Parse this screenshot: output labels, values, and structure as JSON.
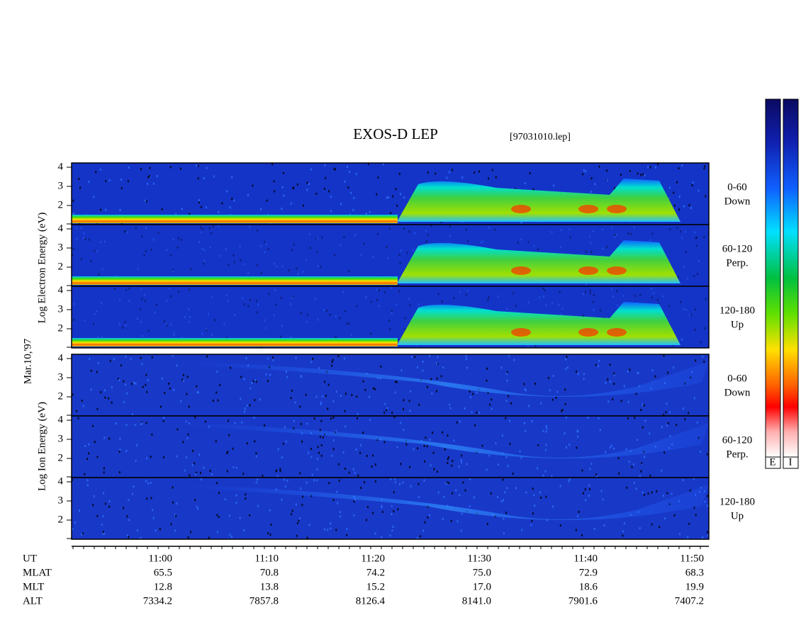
{
  "title": "EXOS-D LEP",
  "file": "[97031010.lep]",
  "date_label": "Mar.10,'97",
  "electron_label": "Log  Electron  Energy (eV)",
  "ion_label": "Log  Ion  Energy (eV)",
  "yticks": [
    "4",
    "3",
    "2"
  ],
  "electron_panels": [
    {
      "angle": "0-60",
      "direction": "Down"
    },
    {
      "angle": "60-120",
      "direction": "Perp."
    },
    {
      "angle": "120-180",
      "direction": "Up"
    }
  ],
  "ion_panels": [
    {
      "angle": "0-60",
      "direction": "Down"
    },
    {
      "angle": "60-120",
      "direction": "Perp."
    },
    {
      "angle": "120-180",
      "direction": "Up"
    }
  ],
  "colorbar": {
    "labels": [
      "E",
      "I"
    ]
  },
  "time_table": {
    "rows": [
      {
        "label": "UT",
        "values": [
          "11:00",
          "11:10",
          "11:20",
          "11:30",
          "11:40",
          "11:50"
        ]
      },
      {
        "label": "MLAT",
        "values": [
          "65.5",
          "70.8",
          "74.2",
          "75.0",
          "72.9",
          "68.3"
        ]
      },
      {
        "label": "MLT",
        "values": [
          "12.8",
          "13.8",
          "15.2",
          "17.0",
          "18.6",
          "19.9"
        ]
      },
      {
        "label": "ALT",
        "values": [
          "7334.2",
          "7857.8",
          "8126.4",
          "8141.0",
          "7901.6",
          "7407.2"
        ]
      }
    ]
  }
}
